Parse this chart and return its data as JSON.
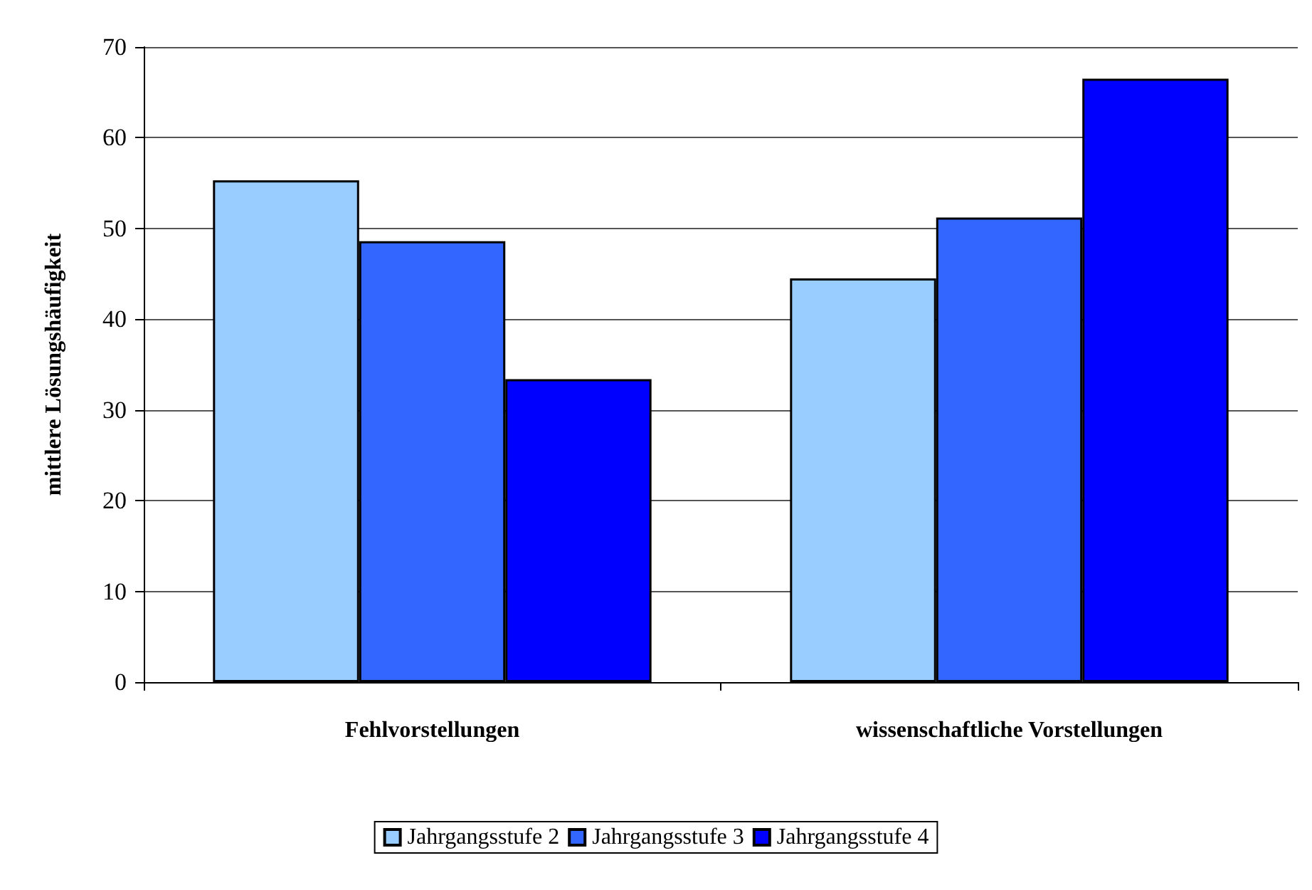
{
  "chart_data": {
    "type": "bar",
    "ylabel": "mittlere Lösungshäufigkeit",
    "categories": [
      "Fehlvorstellungen",
      "wissenschaftliche Vorstellungen"
    ],
    "series": [
      {
        "name": "Jahrgangsstufe 2",
        "color": "#99ccff",
        "values": [
          55.3,
          44.5
        ]
      },
      {
        "name": "Jahrgangsstufe 3",
        "color": "#3366ff",
        "values": [
          48.6,
          51.2
        ]
      },
      {
        "name": "Jahrgangsstufe 4",
        "color": "#0000ff",
        "values": [
          33.4,
          66.5
        ]
      }
    ],
    "ylim": [
      0,
      70
    ],
    "yticks": [
      0,
      10,
      20,
      30,
      40,
      50,
      60,
      70
    ],
    "grid": "y",
    "legend": "bottom"
  }
}
